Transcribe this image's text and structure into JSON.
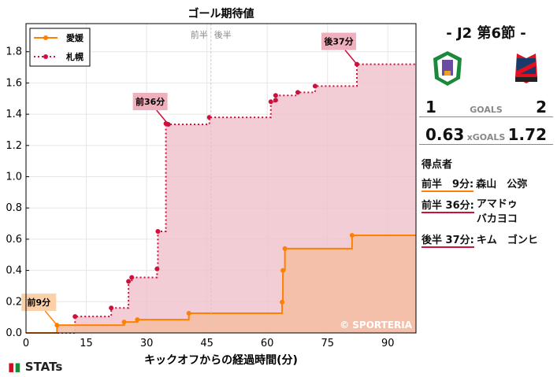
{
  "chart_data": {
    "type": "line",
    "step": true,
    "title": "ゴール期待値",
    "xlabel": "キックオフからの経過時間(分)",
    "ylabel": "",
    "xlim": [
      0,
      97
    ],
    "ylim": [
      0,
      1.98
    ],
    "xticks": [
      0,
      15,
      30,
      45,
      60,
      75,
      90
    ],
    "yticks": [
      0,
      0.2,
      0.4,
      0.6,
      0.8,
      1.0,
      1.2,
      1.4,
      1.6,
      1.8
    ],
    "ytick_labels": [
      "0.0",
      "0.2",
      "0.4",
      "0.6",
      "0.8",
      "1.0",
      "1.2",
      "1.4",
      "1.6",
      "1.8"
    ],
    "grid": true,
    "legend_position": "top-left",
    "halftime_line": {
      "x": 46,
      "labels": [
        "前半",
        "後半"
      ]
    },
    "watermark": "© SPORTERIA",
    "series": [
      {
        "name": "愛媛",
        "color": "#ff8000",
        "style": "solid",
        "x": [
          7.7,
          24.4,
          27.7,
          40.5,
          63.7,
          63.9,
          64.4,
          81.1
        ],
        "y": [
          0.05,
          0.07,
          0.085,
          0.126,
          0.197,
          0.4,
          0.54,
          0.625
        ],
        "end_x": 97
      },
      {
        "name": "札幌",
        "color": "#d0103a",
        "style": "dotted",
        "x": [
          12.2,
          21.2,
          25.5,
          26.3,
          32.6,
          32.8,
          34.8,
          35.4,
          45.6,
          60.9,
          62.1,
          62.1,
          67.6,
          71.9,
          82.3
        ],
        "y": [
          0.105,
          0.16,
          0.33,
          0.355,
          0.41,
          0.65,
          1.34,
          1.335,
          1.38,
          1.48,
          1.49,
          1.52,
          1.54,
          1.58,
          1.72
        ],
        "end_x": 97
      }
    ],
    "annotations": [
      {
        "text": "前9分",
        "series": 0,
        "x": 7.7,
        "y": 0.05
      },
      {
        "text": "前36分",
        "series": 1,
        "x": 35.4,
        "y": 1.335
      },
      {
        "text": "後37分",
        "series": 1,
        "x": 82.3,
        "y": 1.72
      }
    ]
  },
  "match": {
    "round": "- J2 第6節 -",
    "home_goals": "1",
    "away_goals": "2",
    "goals_label": "GOALS",
    "home_xg": "0.63",
    "away_xg": "1.72",
    "xg_label": "xGOALS",
    "scorers_title": "得点者",
    "scorers": [
      {
        "time": "前半　9分:",
        "name": "森山　公弥",
        "color": "#ff8000"
      },
      {
        "time": "前半 36分:",
        "name": "アマドゥ バカヨコ",
        "color": "#d0103a"
      },
      {
        "time": "後半 37分:",
        "name": "キム　ゴンヒ",
        "color": "#d0103a"
      }
    ]
  },
  "brand": "STATs"
}
